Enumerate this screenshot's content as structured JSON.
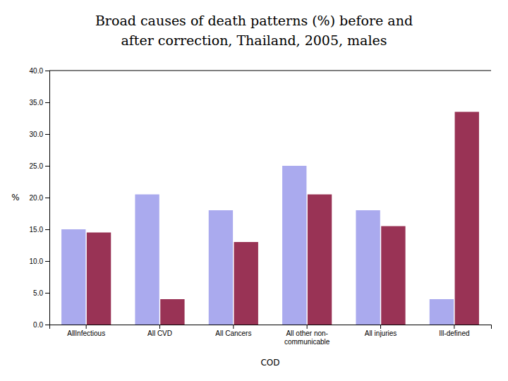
{
  "chart_data": {
    "type": "bar",
    "title": [
      "Broad causes of death patterns (%) before and",
      "after correction, Thailand, 2005, males"
    ],
    "categories": [
      "All­Infectious",
      "All CVD",
      "All Cancers",
      "All other non-\ncommunicable",
      "All injuries",
      "Ill-defined"
    ],
    "series": [
      {
        "color": "#aaaaee",
        "values": [
          15.0,
          20.5,
          18.0,
          25.0,
          18.0,
          4.0
        ]
      },
      {
        "color": "#993355",
        "values": [
          14.5,
          4.0,
          13.0,
          20.5,
          15.5,
          33.5
        ]
      }
    ],
    "xlabel": "COD",
    "ylabel": "%",
    "ylim": [
      0,
      40
    ],
    "yticks": [
      {
        "value": 0,
        "label": "0.0"
      },
      {
        "value": 5,
        "label": "5.0"
      },
      {
        "value": 10,
        "label": "10.0"
      },
      {
        "value": 15,
        "label": "15.0"
      },
      {
        "value": 20,
        "label": "20.0"
      },
      {
        "value": 25,
        "label": "25.0"
      },
      {
        "value": 30,
        "label": "30.0"
      },
      {
        "value": 35,
        "label": "35.0"
      },
      {
        "value": 40,
        "label": "40.0"
      }
    ],
    "grid": false
  }
}
